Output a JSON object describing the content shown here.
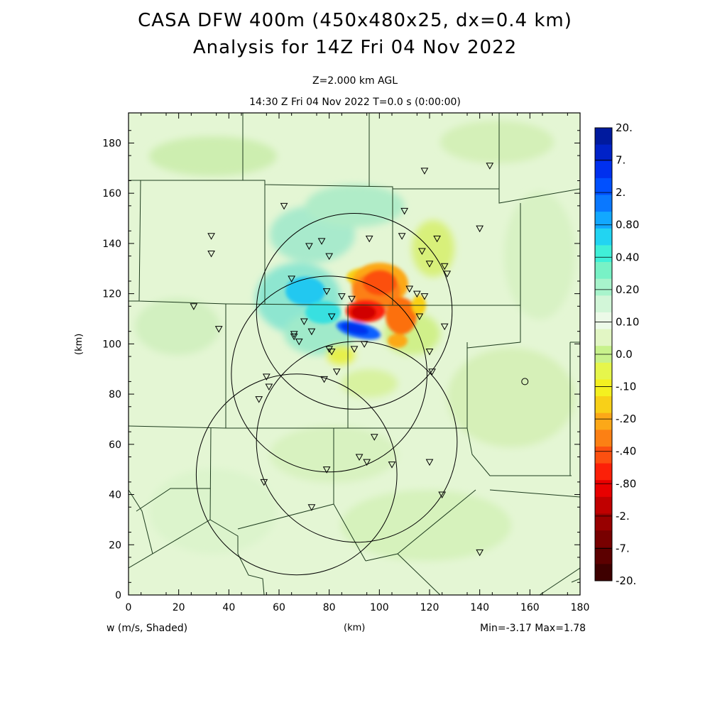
{
  "chart_data": {
    "type": "heatmap",
    "title": "CASA DFW 400m (450x480x25, dx=0.4 km)",
    "subtitle": "Analysis for 14Z Fri 04 Nov 2022",
    "level_label": "Z=2.000 km AGL",
    "time_label": "14:30 Z Fri 04 Nov 2022   T=0.0 s (0:00:00)",
    "xlabel": "(km)",
    "ylabel": "(km)",
    "variable_label": "w (m/s, Shaded)",
    "minmax_label": "Min=-3.17 Max=1.78",
    "xlim": [
      0,
      180
    ],
    "ylim": [
      0,
      192
    ],
    "x_ticks": [
      0,
      20,
      40,
      60,
      80,
      100,
      120,
      140,
      160,
      180
    ],
    "y_ticks": [
      0,
      20,
      40,
      60,
      80,
      100,
      120,
      140,
      160,
      180
    ],
    "x_tick_labels": [
      "0",
      "20",
      "40",
      "60",
      "80",
      "100",
      "120",
      "140",
      "160",
      "180"
    ],
    "y_tick_labels": [
      "0",
      "20",
      "40",
      "60",
      "80",
      "100",
      "120",
      "140",
      "160",
      "180"
    ],
    "colorbar": {
      "labels": [
        "20.",
        "7.",
        "2.",
        "0.80",
        "0.40",
        "0.20",
        "0.10",
        "0.0",
        "-.10",
        "-.20",
        "-.40",
        "-.80",
        "-2.",
        "-7.",
        "-20."
      ],
      "colors": [
        "#001a9e",
        "#0022c8",
        "#0030ee",
        "#0050ff",
        "#0a78ff",
        "#12a8ff",
        "#22d4f2",
        "#40f0d8",
        "#78f2c6",
        "#a8f4cc",
        "#d2f6d8",
        "#ecfae8",
        "#e2f6c4",
        "#c8f28c",
        "#e6f64c",
        "#f4f020",
        "#f8d018",
        "#fca818",
        "#fc8014",
        "#fc5010",
        "#fc2008",
        "#e80000",
        "#c00000",
        "#980000",
        "#780000",
        "#5c0000",
        "#3e0000"
      ]
    },
    "radars": [
      {
        "x": 90,
        "y": 113,
        "r": 39
      },
      {
        "x": 80,
        "y": 88,
        "r": 39
      },
      {
        "x": 67,
        "y": 48,
        "r": 40
      },
      {
        "x": 91,
        "y": 61,
        "r": 40
      }
    ],
    "stations": [
      [
        118,
        169
      ],
      [
        144,
        171
      ],
      [
        62,
        155
      ],
      [
        110,
        153
      ],
      [
        33,
        143
      ],
      [
        33,
        136
      ],
      [
        140,
        146
      ],
      [
        96,
        142
      ],
      [
        109,
        143
      ],
      [
        77,
        141
      ],
      [
        72,
        139
      ],
      [
        123,
        142
      ],
      [
        80,
        135
      ],
      [
        117,
        137
      ],
      [
        120,
        132
      ],
      [
        126,
        131
      ],
      [
        127,
        128
      ],
      [
        65,
        126
      ],
      [
        79,
        121
      ],
      [
        85,
        119
      ],
      [
        89,
        118
      ],
      [
        112,
        122
      ],
      [
        115,
        120
      ],
      [
        118,
        119
      ],
      [
        26,
        115
      ],
      [
        81,
        111
      ],
      [
        116,
        111
      ],
      [
        126,
        107
      ],
      [
        70,
        109
      ],
      [
        36,
        106
      ],
      [
        66,
        104
      ],
      [
        66,
        103
      ],
      [
        73,
        105
      ],
      [
        68,
        101
      ],
      [
        94,
        100
      ],
      [
        90,
        98
      ],
      [
        80,
        98
      ],
      [
        81,
        97
      ],
      [
        120,
        97
      ],
      [
        55,
        87
      ],
      [
        56,
        83
      ],
      [
        78,
        86
      ],
      [
        83,
        89
      ],
      [
        121,
        89
      ],
      [
        52,
        78
      ],
      [
        98,
        63
      ],
      [
        92,
        55
      ],
      [
        95,
        53
      ],
      [
        79,
        50
      ],
      [
        105,
        52
      ],
      [
        120,
        53
      ],
      [
        54,
        45
      ],
      [
        125,
        40
      ],
      [
        73,
        35
      ],
      [
        140,
        17
      ]
    ],
    "open_circle_marker": [
      158,
      85
    ],
    "w_min": -3.17,
    "w_max": 1.78
  }
}
